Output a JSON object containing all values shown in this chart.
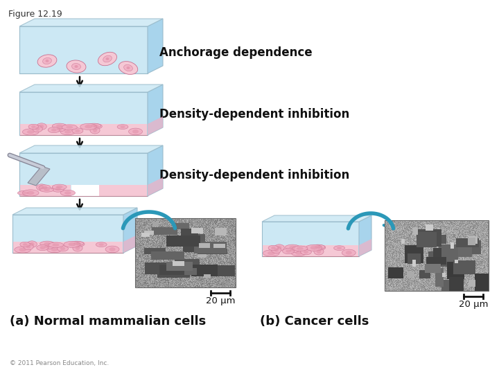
{
  "figure_label": "Figure 12.19",
  "background_color": "#ffffff",
  "label_fontsize": 12,
  "caption_fontsize": 13,
  "copyright": "© 2011 Pearson Education, Inc.",
  "text_anchorage": "Anchorage dependence",
  "text_density1": "Density-dependent inhibition",
  "text_density2": "Density-dependent inhibition",
  "scale_bar_text": "20 μm",
  "caption_a": "(a) Normal mammalian cells",
  "caption_b": "(b) Cancer cells",
  "dish_blue_light": "#cce8f4",
  "dish_blue_mid": "#a8d4ec",
  "dish_blue_dark": "#8ec4e0",
  "dish_wall_color": "#daeef8",
  "cell_pink_light": "#f5c8d5",
  "cell_pink_mid": "#f0afc4",
  "cell_pink_dark": "#e090a8",
  "cell_outline": "#c87090",
  "arrow_color": "#111111",
  "teal_color": "#2b98b8",
  "scraper_color": "#aaaaaa",
  "scale_bar_color": "#111111",
  "gap_white": "#ffffff"
}
